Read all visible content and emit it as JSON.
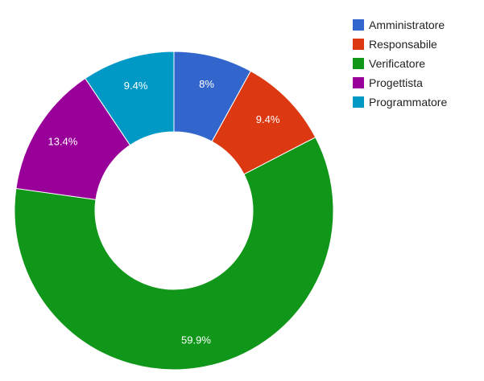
{
  "chart_data": {
    "type": "pie",
    "donut": true,
    "categories": [
      "Amministratore",
      "Responsabile",
      "Verificatore",
      "Progettista",
      "Programmatore"
    ],
    "values": [
      8.0,
      9.4,
      59.9,
      13.4,
      9.4
    ],
    "labels": [
      "8%",
      "9.4%",
      "59.9%",
      "13.4%",
      "9.4%"
    ],
    "colors": [
      "#3366cc",
      "#dc3912",
      "#109618",
      "#990099",
      "#0099c6"
    ],
    "legend_position": "right",
    "start_angle": "top",
    "direction": "clockwise"
  }
}
